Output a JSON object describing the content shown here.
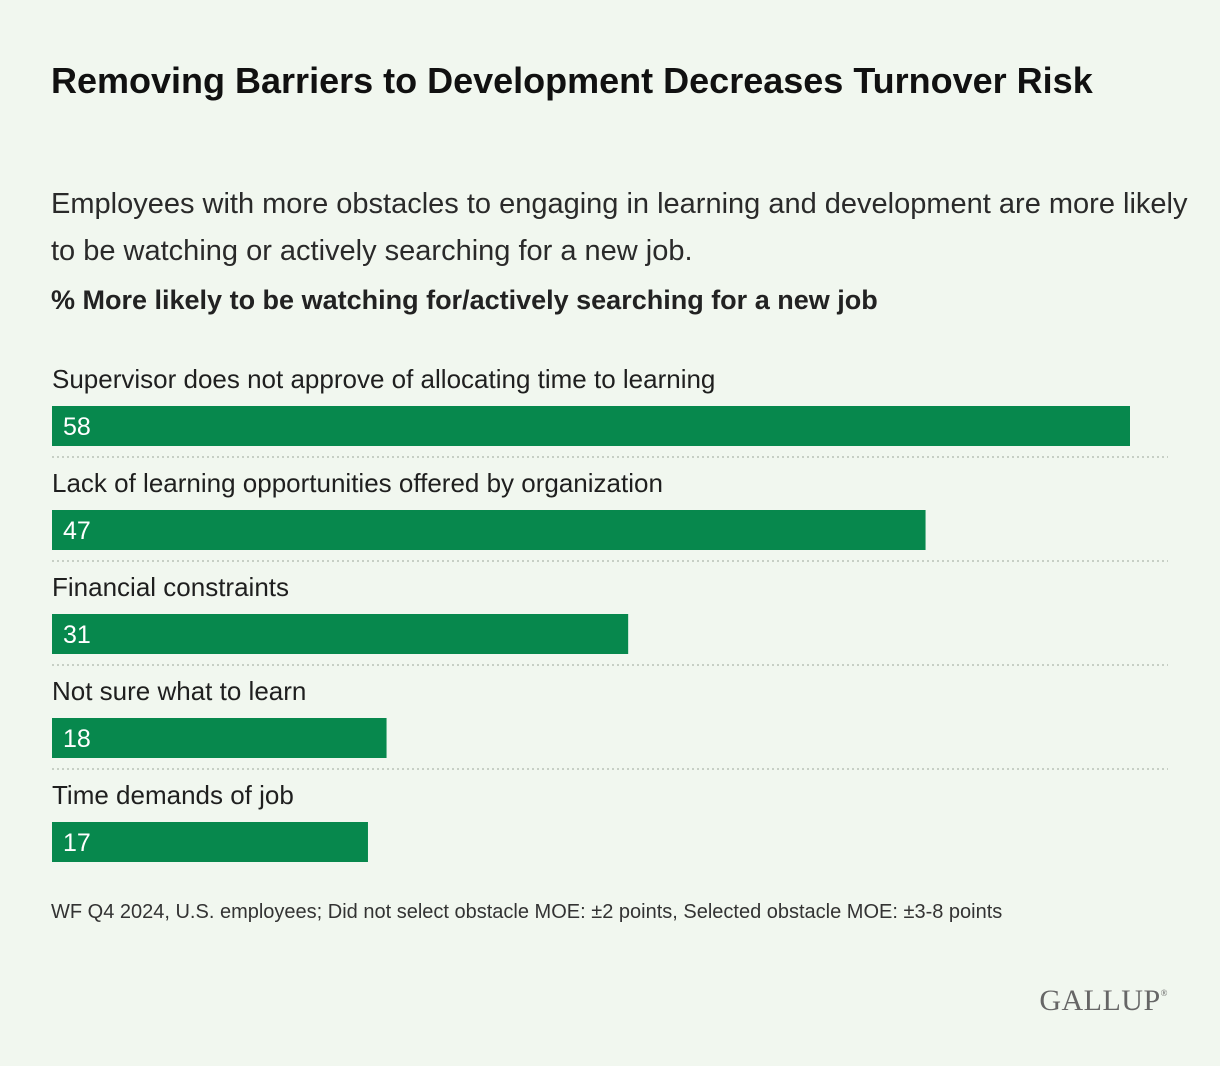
{
  "title": "Removing Barriers to Development Decreases Turnover Risk",
  "subtitle": "Employees with more obstacles to engaging in learning and development are more likely to be watching or actively searching for a new job.",
  "unit_label": "% More likely to be watching for/actively searching for a new job",
  "footnote": "WF Q4 2024, U.S. employees; Did not select obstacle MOE: ±2 points, Selected obstacle MOE: ±3-8 points",
  "logo": "GALLUP",
  "colors": {
    "bar": "#07884d",
    "bar_text": "#ffffff",
    "divider": "#b9c2b7",
    "background": "#f1f7ef"
  },
  "chart_data": {
    "type": "bar",
    "orientation": "horizontal",
    "title": "Removing Barriers to Development Decreases Turnover Risk",
    "xlabel": "% More likely to be watching for/actively searching for a new job",
    "ylabel": "",
    "xlim": [
      0,
      58
    ],
    "categories": [
      "Supervisor does not approve of allocating time to learning",
      "Lack of learning opportunities offered by organization",
      "Financial constraints",
      "Not sure what to learn",
      "Time demands of job"
    ],
    "values": [
      58,
      47,
      31,
      18,
      17
    ]
  }
}
